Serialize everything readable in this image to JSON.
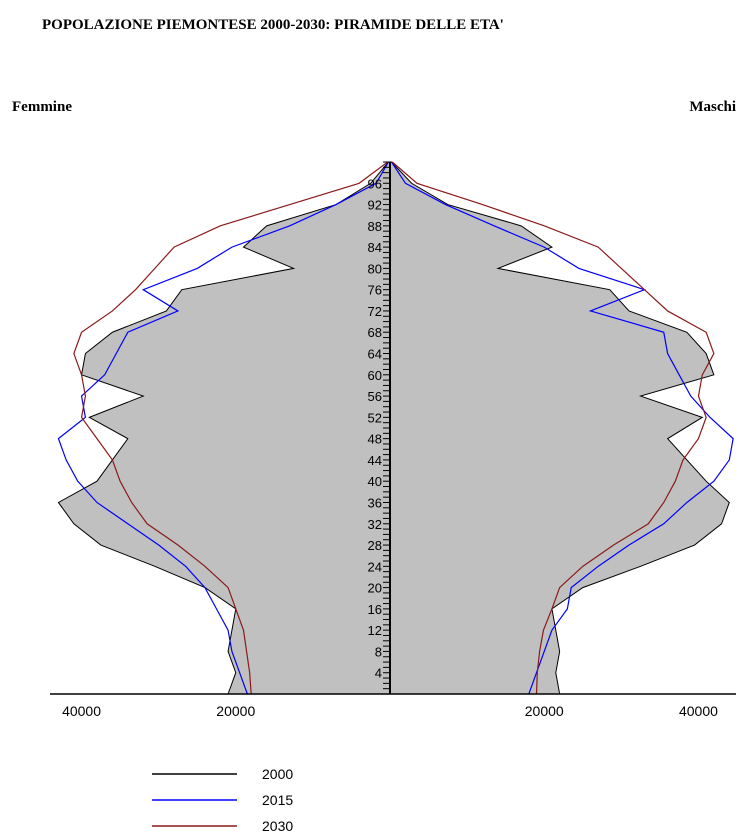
{
  "chart_data": {
    "type": "pyramid",
    "title": "POPOLAZIONE PIEMONTESE 2000-2030: PIRAMIDE DELLE ETA'",
    "left_label": "Femmine",
    "right_label": "Maschi",
    "x_ticks": [
      "40000",
      "20000",
      "20000",
      "40000"
    ],
    "x_tick_values": [
      40000,
      20000,
      20000,
      40000
    ],
    "x_tick_sides": [
      "left",
      "left",
      "right",
      "right"
    ],
    "x_max": 45000,
    "age_range": [
      0,
      100
    ],
    "age_labels": [
      "96",
      "92",
      "88",
      "84",
      "80",
      "76",
      "72",
      "68",
      "64",
      "60",
      "56",
      "52",
      "48",
      "44",
      "40",
      "36",
      "32",
      "28",
      "24",
      "20",
      "16",
      "12",
      "8",
      "4"
    ],
    "ages": [
      0,
      4,
      8,
      12,
      16,
      20,
      24,
      28,
      32,
      36,
      40,
      44,
      48,
      52,
      56,
      60,
      64,
      68,
      72,
      76,
      80,
      84,
      88,
      92,
      96,
      100
    ],
    "series": [
      {
        "name": "2000",
        "color": "#000000",
        "fill": "#c0c0c0",
        "female": [
          21000,
          20000,
          21000,
          20500,
          20000,
          24000,
          30500,
          37500,
          41000,
          43000,
          38000,
          36000,
          34000,
          39000,
          32000,
          40000,
          39500,
          36000,
          29000,
          27000,
          12500,
          19000,
          16000,
          7000,
          2500,
          200
        ],
        "male": [
          22000,
          21500,
          22000,
          21500,
          21000,
          25000,
          32500,
          39500,
          43000,
          44000,
          41000,
          38500,
          36000,
          40500,
          32500,
          42000,
          41000,
          38500,
          31000,
          28500,
          14000,
          21000,
          17000,
          7500,
          2800,
          200
        ]
      },
      {
        "name": "2015",
        "color": "#0000ff",
        "female": [
          18500,
          19500,
          20500,
          21000,
          22500,
          24000,
          26500,
          30000,
          34000,
          38000,
          40500,
          42000,
          43000,
          39500,
          40000,
          37000,
          35500,
          34000,
          27500,
          32000,
          25000,
          20500,
          13000,
          7000,
          1800,
          200
        ],
        "male": [
          18000,
          19000,
          20000,
          21000,
          23000,
          23500,
          27000,
          31000,
          35500,
          38500,
          42000,
          44000,
          44500,
          41500,
          39000,
          37500,
          36000,
          35500,
          26000,
          33000,
          24500,
          20000,
          13500,
          7200,
          2000,
          200
        ]
      },
      {
        "name": "2030",
        "color": "#8b1a1a",
        "female": [
          18000,
          18200,
          18600,
          19000,
          20000,
          21000,
          24000,
          27500,
          31500,
          33500,
          35000,
          36000,
          38000,
          40000,
          39500,
          40000,
          41000,
          40000,
          36000,
          33000,
          30500,
          28000,
          22000,
          13000,
          4000,
          300
        ],
        "male": [
          19000,
          19100,
          19400,
          19900,
          21000,
          22000,
          25000,
          29000,
          33500,
          35500,
          37000,
          38000,
          40000,
          41000,
          40000,
          40500,
          42000,
          41000,
          36000,
          33000,
          30000,
          27000,
          20000,
          12000,
          3500,
          300
        ]
      }
    ]
  }
}
